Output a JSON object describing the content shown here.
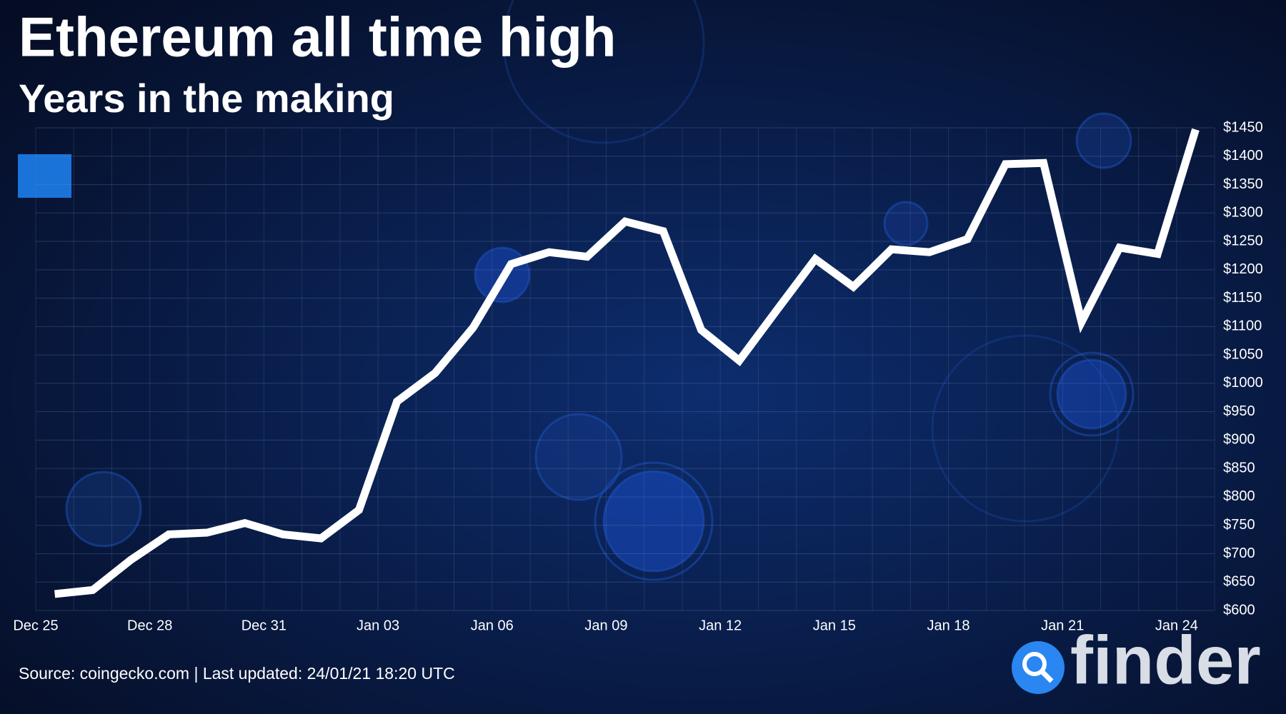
{
  "chart_data": {
    "type": "line",
    "title": "Ethereum all time high",
    "subtitle": "Years in the making",
    "source": "Source: coingecko.com | Last updated: 24/01/21 18:20 UTC",
    "categories": [
      "Dec 25",
      null,
      null,
      "Dec 28",
      null,
      null,
      "Dec 31",
      null,
      null,
      "Jan 03",
      null,
      null,
      "Jan 06",
      null,
      null,
      "Jan 09",
      null,
      null,
      "Jan 12",
      null,
      null,
      "Jan 15",
      null,
      null,
      "Jan 18",
      null,
      null,
      "Jan 21",
      null,
      null,
      "Jan 24"
    ],
    "series": [
      {
        "color": "#ffffff",
        "values": [
          629,
          636,
          689,
          734,
          737,
          754,
          734,
          727,
          777,
          968,
          1018,
          1098,
          1210,
          1231,
          1223,
          1285,
          1268,
          1094,
          1040,
          1130,
          1219,
          1170,
          1236,
          1231,
          1254,
          1386,
          1388,
          1108,
          1239,
          1228,
          1447
        ]
      }
    ],
    "ylim": [
      600,
      1450
    ],
    "yticks": [
      {
        "value": 600,
        "label": "$600"
      },
      {
        "value": 650,
        "label": "$650"
      },
      {
        "value": 700,
        "label": "$700"
      },
      {
        "value": 750,
        "label": "$750"
      },
      {
        "value": 800,
        "label": "$800"
      },
      {
        "value": 850,
        "label": "$850"
      },
      {
        "value": 900,
        "label": "$900"
      },
      {
        "value": 950,
        "label": "$950"
      },
      {
        "value": 1000,
        "label": "$1000"
      },
      {
        "value": 1050,
        "label": "$1050"
      },
      {
        "value": 1100,
        "label": "$1100"
      },
      {
        "value": 1150,
        "label": "$1150"
      },
      {
        "value": 1200,
        "label": "$1200"
      },
      {
        "value": 1250,
        "label": "$1250"
      },
      {
        "value": 1300,
        "label": "$1300"
      },
      {
        "value": 1350,
        "label": "$1350"
      },
      {
        "value": 1400,
        "label": "$1400"
      },
      {
        "value": 1450,
        "label": "$1450"
      }
    ],
    "grid": true
  },
  "logo": "finder"
}
